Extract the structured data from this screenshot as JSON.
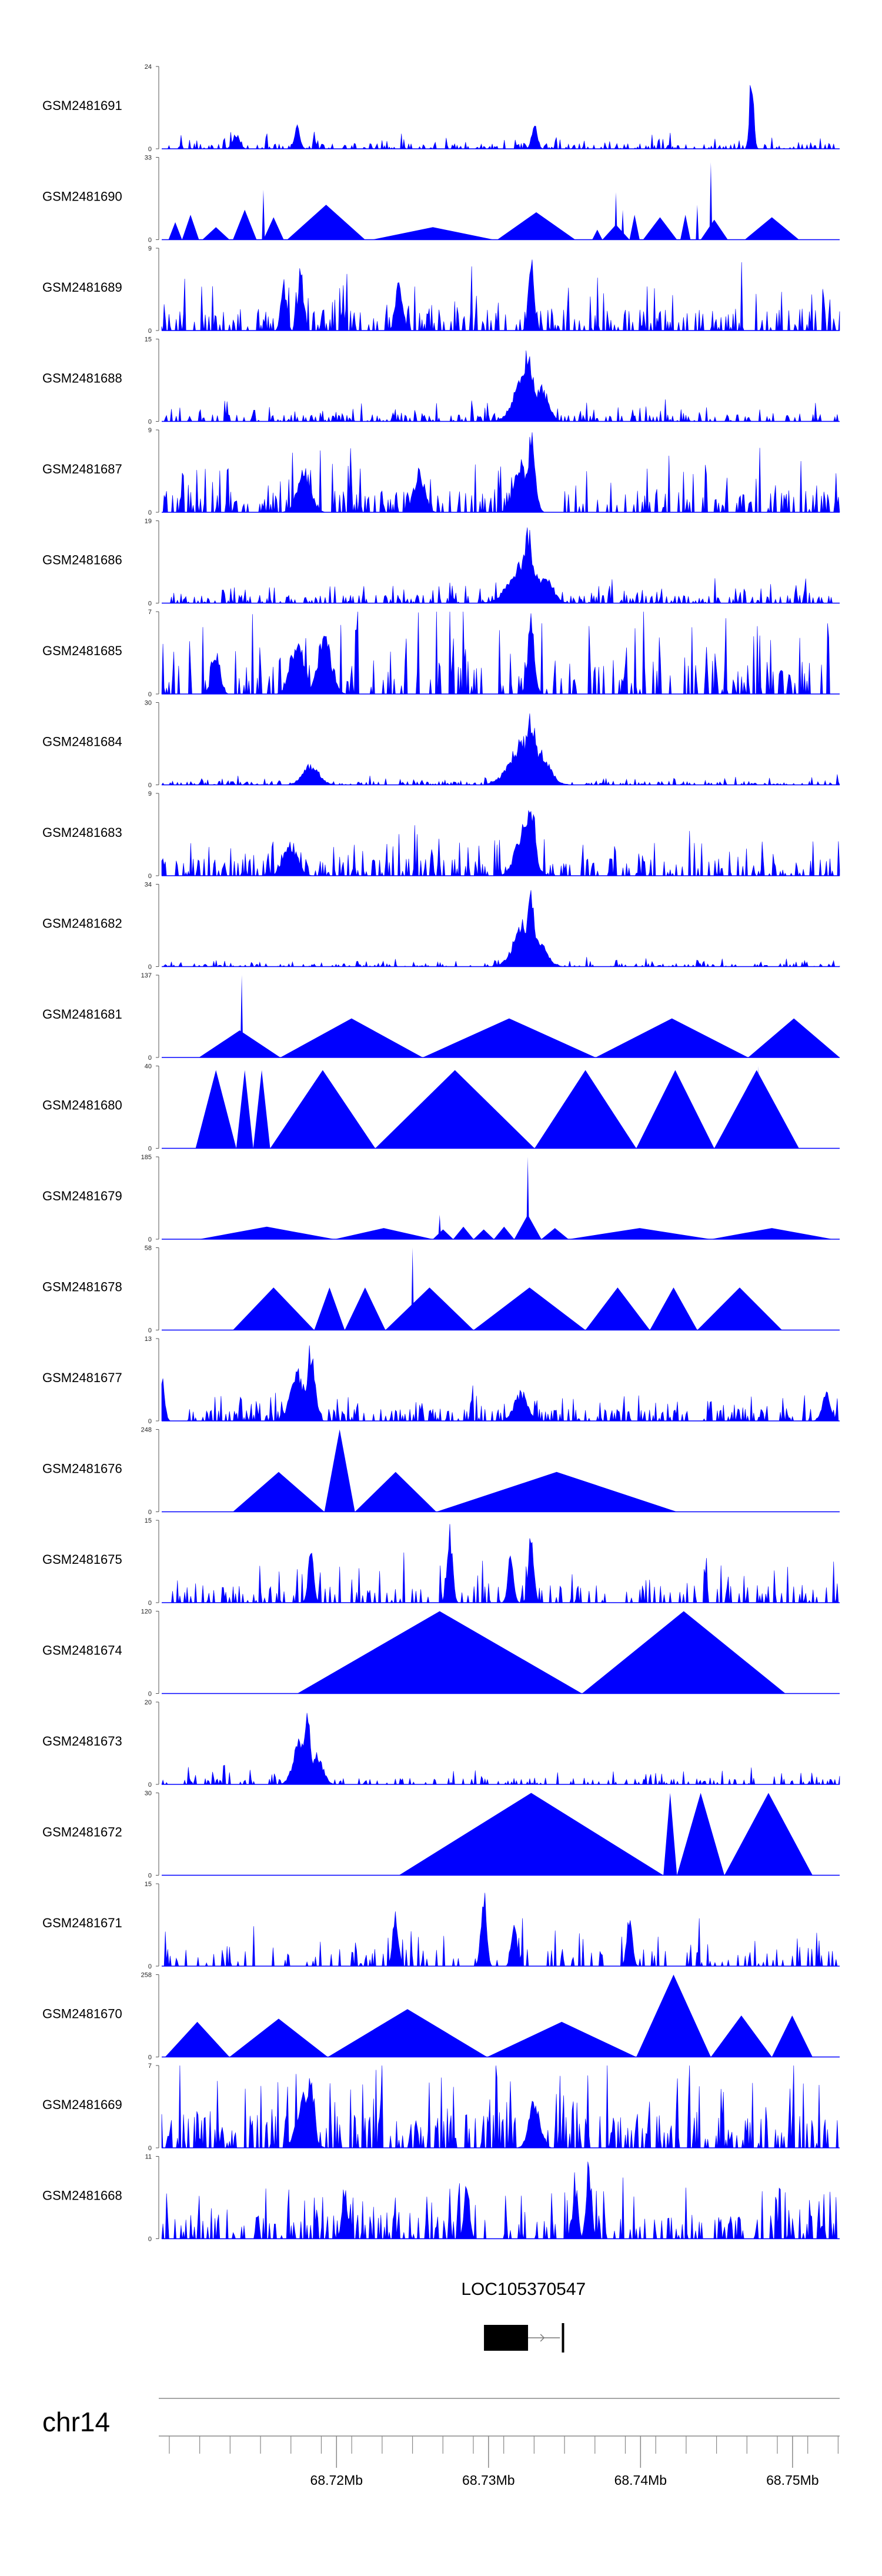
{
  "chart_data": {
    "type": "area",
    "title": "",
    "xlabel": "",
    "ylabel": "",
    "chromosome": "chr14",
    "xlim_mb": [
      68.7085,
      68.7531
    ],
    "x_ticks_mb": [
      68.72,
      68.73,
      68.74,
      68.75
    ],
    "x_tick_labels": [
      "68.72Mb",
      "68.73Mb",
      "68.74Mb",
      "68.75Mb"
    ],
    "tracks": [
      {
        "name": "GSM2481691",
        "ymax": 24,
        "ymin": 0,
        "style": "spiky",
        "baseline": 1,
        "density": 1.0,
        "seed": 11,
        "peaks": [
          [
            0.2,
            8,
            0.004
          ],
          [
            0.55,
            9,
            0.004
          ],
          [
            0.87,
            24,
            0.003
          ],
          [
            0.11,
            5,
            0.005
          ]
        ]
      },
      {
        "name": "GSM2481690",
        "ymax": 33,
        "ymin": 0,
        "style": "triangles",
        "segments": [
          [
            0.01,
            0.03,
            7
          ],
          [
            0.03,
            0.055,
            10
          ],
          [
            0.06,
            0.1,
            5
          ],
          [
            0.105,
            0.14,
            12
          ],
          [
            0.15,
            0.18,
            9
          ],
          [
            0.185,
            0.3,
            14
          ],
          [
            0.31,
            0.49,
            5
          ],
          [
            0.495,
            0.61,
            11
          ],
          [
            0.635,
            0.65,
            4
          ],
          [
            0.65,
            0.69,
            6
          ],
          [
            0.69,
            0.705,
            10
          ],
          [
            0.71,
            0.76,
            9
          ],
          [
            0.765,
            0.78,
            10
          ],
          [
            0.795,
            0.835,
            8
          ],
          [
            0.86,
            0.94,
            9
          ]
        ],
        "spikes": [
          [
            0.15,
            20
          ],
          [
            0.67,
            19
          ],
          [
            0.81,
            31
          ],
          [
            0.79,
            14
          ],
          [
            0.68,
            12
          ]
        ]
      },
      {
        "name": "GSM2481689",
        "ymax": 9,
        "ymin": 0,
        "style": "spiky",
        "baseline": 1.5,
        "density": 1.0,
        "seed": 23,
        "peaks": [
          [
            0.545,
            9,
            0.004
          ],
          [
            0.205,
            7.5,
            0.004
          ],
          [
            0.18,
            6,
            0.004
          ],
          [
            0.35,
            6,
            0.005
          ]
        ]
      },
      {
        "name": "GSM2481688",
        "ymax": 15,
        "ymin": 0,
        "style": "spiky",
        "baseline": 0.8,
        "density": 1.0,
        "seed": 31,
        "peaks": [
          [
            0.54,
            14,
            0.008
          ],
          [
            0.535,
            9,
            0.015
          ],
          [
            0.56,
            7,
            0.01
          ]
        ]
      },
      {
        "name": "GSM2481687",
        "ymax": 9,
        "ymin": 0,
        "style": "spiky",
        "baseline": 1.5,
        "density": 1.0,
        "seed": 37,
        "peaks": [
          [
            0.545,
            9,
            0.006
          ],
          [
            0.53,
            6,
            0.01
          ],
          [
            0.21,
            5,
            0.01
          ],
          [
            0.38,
            5,
            0.008
          ]
        ]
      },
      {
        "name": "GSM2481686",
        "ymax": 19,
        "ymin": 0,
        "style": "spiky",
        "baseline": 1.2,
        "density": 1.0,
        "seed": 41,
        "peaks": [
          [
            0.54,
            19,
            0.007
          ],
          [
            0.535,
            11,
            0.02
          ],
          [
            0.565,
            6,
            0.012
          ]
        ]
      },
      {
        "name": "GSM2481685",
        "ymax": 7,
        "ymin": 0,
        "style": "spiky",
        "baseline": 1.8,
        "density": 0.8,
        "seed": 43,
        "peaks": [
          [
            0.545,
            7,
            0.005
          ],
          [
            0.24,
            5.5,
            0.01
          ],
          [
            0.2,
            5,
            0.01
          ],
          [
            0.08,
            4,
            0.006
          ]
        ]
      },
      {
        "name": "GSM2481684",
        "ymax": 30,
        "ymin": 0,
        "style": "spiky",
        "baseline": 0.8,
        "density": 1.0,
        "seed": 47,
        "peaks": [
          [
            0.545,
            28,
            0.008
          ],
          [
            0.535,
            18,
            0.02
          ],
          [
            0.555,
            14,
            0.015
          ],
          [
            0.22,
            8,
            0.012
          ]
        ]
      },
      {
        "name": "GSM2481683",
        "ymax": 9,
        "ymin": 0,
        "style": "spiky",
        "baseline": 1.2,
        "density": 1.0,
        "seed": 53,
        "peaks": [
          [
            0.545,
            9,
            0.006
          ],
          [
            0.535,
            6,
            0.012
          ],
          [
            0.19,
            4,
            0.01
          ]
        ]
      },
      {
        "name": "GSM2481682",
        "ymax": 34,
        "ymin": 0,
        "style": "spiky",
        "baseline": 0.8,
        "density": 1.0,
        "seed": 59,
        "peaks": [
          [
            0.545,
            33,
            0.006
          ],
          [
            0.535,
            20,
            0.015
          ],
          [
            0.555,
            12,
            0.012
          ]
        ]
      },
      {
        "name": "GSM2481681",
        "ymax": 137,
        "ymin": 0,
        "style": "triangles",
        "segments": [
          [
            0.055,
            0.175,
            45
          ],
          [
            0.175,
            0.385,
            65
          ],
          [
            0.385,
            0.64,
            65
          ],
          [
            0.64,
            0.865,
            65
          ],
          [
            0.865,
            1.0,
            65
          ]
        ],
        "spikes": [
          [
            0.118,
            137
          ]
        ]
      },
      {
        "name": "GSM2481680",
        "ymax": 40,
        "ymin": 0,
        "style": "triangles",
        "segments": [
          [
            0.05,
            0.11,
            38
          ],
          [
            0.11,
            0.135,
            38
          ],
          [
            0.135,
            0.16,
            38
          ],
          [
            0.16,
            0.315,
            38
          ],
          [
            0.315,
            0.55,
            38
          ],
          [
            0.55,
            0.7,
            38
          ],
          [
            0.7,
            0.815,
            38
          ],
          [
            0.815,
            0.94,
            38
          ]
        ],
        "spikes": [
          [
            0.88,
            40
          ]
        ]
      },
      {
        "name": "GSM2481679",
        "ymax": 185,
        "ymin": 0,
        "style": "triangles",
        "segments": [
          [
            0.055,
            0.255,
            28
          ],
          [
            0.255,
            0.4,
            25
          ],
          [
            0.4,
            0.43,
            22
          ],
          [
            0.43,
            0.46,
            28
          ],
          [
            0.46,
            0.49,
            22
          ],
          [
            0.49,
            0.52,
            28
          ],
          [
            0.52,
            0.56,
            55
          ],
          [
            0.56,
            0.6,
            25
          ],
          [
            0.6,
            0.81,
            25
          ],
          [
            0.81,
            0.99,
            25
          ]
        ],
        "spikes": [
          [
            0.54,
            185
          ],
          [
            0.41,
            55
          ]
        ]
      },
      {
        "name": "GSM2481678",
        "ymax": 58,
        "ymin": 0,
        "style": "triangles",
        "segments": [
          [
            0.105,
            0.225,
            30
          ],
          [
            0.225,
            0.27,
            30
          ],
          [
            0.27,
            0.33,
            30
          ],
          [
            0.33,
            0.46,
            30
          ],
          [
            0.46,
            0.625,
            30
          ],
          [
            0.625,
            0.72,
            30
          ],
          [
            0.72,
            0.79,
            30
          ],
          [
            0.79,
            0.915,
            30
          ]
        ],
        "spikes": [
          [
            0.37,
            58
          ]
        ]
      },
      {
        "name": "GSM2481677",
        "ymax": 13,
        "ymin": 0,
        "style": "spiky",
        "baseline": 1.2,
        "density": 1.0,
        "seed": 61,
        "peaks": [
          [
            0.22,
            13,
            0.006
          ],
          [
            0.2,
            9,
            0.01
          ],
          [
            0.0,
            8,
            0.004
          ],
          [
            0.53,
            5,
            0.01
          ],
          [
            0.98,
            5,
            0.006
          ]
        ]
      },
      {
        "name": "GSM2481676",
        "ymax": 248,
        "ymin": 0,
        "style": "triangles",
        "segments": [
          [
            0.105,
            0.24,
            120
          ],
          [
            0.24,
            0.285,
            248
          ],
          [
            0.285,
            0.405,
            120
          ],
          [
            0.405,
            0.76,
            120
          ]
        ],
        "spikes": []
      },
      {
        "name": "GSM2481675",
        "ymax": 15,
        "ymin": 0,
        "style": "spiky",
        "baseline": 2.0,
        "density": 0.7,
        "seed": 67,
        "peaks": [
          [
            0.425,
            15,
            0.004
          ],
          [
            0.545,
            14,
            0.004
          ],
          [
            0.515,
            11,
            0.004
          ],
          [
            0.22,
            11,
            0.004
          ]
        ]
      },
      {
        "name": "GSM2481674",
        "ymax": 120,
        "ymin": 0,
        "style": "triangles",
        "segments": [
          [
            0.2,
            0.62,
            120
          ],
          [
            0.62,
            0.92,
            120
          ]
        ],
        "spikes": []
      },
      {
        "name": "GSM2481673",
        "ymax": 20,
        "ymin": 0,
        "style": "spiky",
        "baseline": 1.0,
        "density": 0.8,
        "seed": 71,
        "peaks": [
          [
            0.215,
            20,
            0.005
          ],
          [
            0.205,
            12,
            0.01
          ],
          [
            0.23,
            8,
            0.008
          ]
        ]
      },
      {
        "name": "GSM2481672",
        "ymax": 30,
        "ymin": 0,
        "style": "triangles",
        "segments": [
          [
            0.35,
            0.74,
            30
          ],
          [
            0.74,
            0.76,
            30
          ],
          [
            0.76,
            0.83,
            30
          ],
          [
            0.83,
            0.96,
            30
          ]
        ],
        "spikes": []
      },
      {
        "name": "GSM2481671",
        "ymax": 15,
        "ymin": 0,
        "style": "spiky",
        "baseline": 2.0,
        "density": 0.65,
        "seed": 73,
        "peaks": [
          [
            0.475,
            15,
            0.004
          ],
          [
            0.69,
            11,
            0.004
          ],
          [
            0.345,
            11,
            0.004
          ],
          [
            0.52,
            9,
            0.004
          ]
        ]
      },
      {
        "name": "GSM2481670",
        "ymax": 258,
        "ymin": 0,
        "style": "triangles",
        "segments": [
          [
            0.005,
            0.1,
            110
          ],
          [
            0.1,
            0.245,
            120
          ],
          [
            0.245,
            0.48,
            150
          ],
          [
            0.48,
            0.7,
            110
          ],
          [
            0.7,
            0.81,
            258
          ],
          [
            0.81,
            0.9,
            130
          ],
          [
            0.9,
            0.96,
            130
          ]
        ],
        "spikes": []
      },
      {
        "name": "GSM2481669",
        "ymax": 7,
        "ymin": 0,
        "style": "spiky",
        "baseline": 1.8,
        "density": 1.0,
        "seed": 79,
        "peaks": [
          [
            0.22,
            7,
            0.005
          ],
          [
            0.21,
            5,
            0.01
          ],
          [
            0.55,
            4.5,
            0.008
          ]
        ]
      },
      {
        "name": "GSM2481668",
        "ymax": 11,
        "ymin": 0,
        "style": "spiky",
        "baseline": 2.0,
        "density": 1.0,
        "seed": 83,
        "peaks": [
          [
            0.63,
            11,
            0.004
          ],
          [
            0.61,
            8,
            0.004
          ],
          [
            0.45,
            8,
            0.004
          ],
          [
            0.27,
            8,
            0.004
          ]
        ]
      }
    ],
    "gene": {
      "name": "LOC105370547",
      "exon_mb": [
        68.7297,
        68.7326
      ],
      "intron_mb": [
        68.7326,
        68.7347
      ],
      "end_mb": 68.7349
    }
  }
}
